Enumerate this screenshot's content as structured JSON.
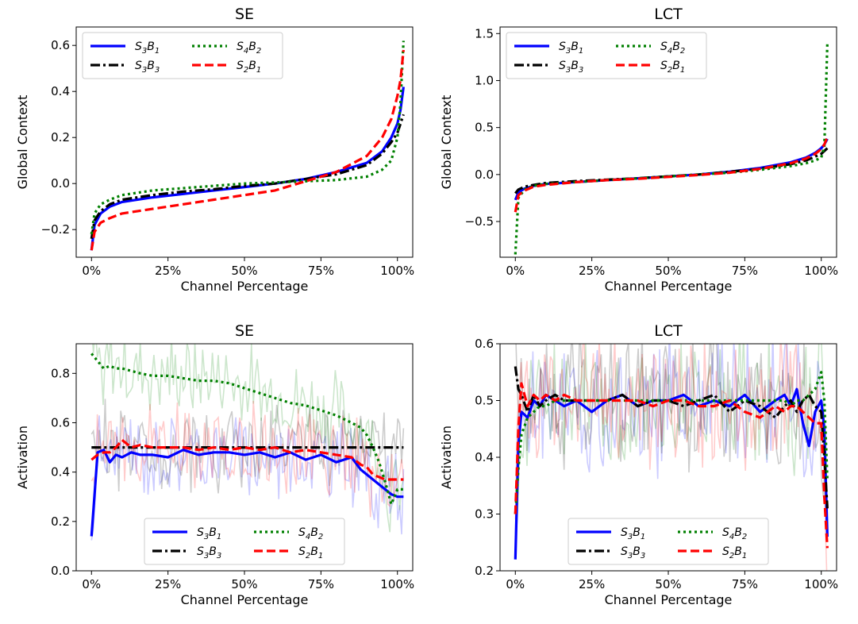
{
  "figure": {
    "legend_labels": {
      "S3B1": {
        "base": "S",
        "sub1": "3",
        "mid": "B",
        "sub2": "1"
      },
      "S3B3": {
        "base": "S",
        "sub1": "3",
        "mid": "B",
        "sub2": "3"
      },
      "S4B2": {
        "base": "S",
        "sub1": "4",
        "mid": "B",
        "sub2": "2"
      },
      "S2B1": {
        "base": "S",
        "sub1": "2",
        "mid": "B",
        "sub2": "1"
      }
    },
    "series_style": {
      "S3B1": {
        "color": "#0000ff",
        "dash": "solid"
      },
      "S3B3": {
        "color": "#000000",
        "dash": "dashdot"
      },
      "S4B2": {
        "color": "#008000",
        "dash": "dotted"
      },
      "S2B1": {
        "color": "#ff0000",
        "dash": "dashed"
      }
    }
  },
  "chart_data": [
    {
      "id": "se_context",
      "type": "line",
      "title": "SE",
      "xlabel": "Channel Percentage",
      "ylabel": "Global Context",
      "xlim": [
        -5,
        105
      ],
      "ylim": [
        -0.32,
        0.68
      ],
      "xticks": [
        0,
        25,
        50,
        75,
        100
      ],
      "xtick_labels": [
        "0%",
        "25%",
        "50%",
        "75%",
        "100%"
      ],
      "yticks": [
        -0.2,
        0.0,
        0.2,
        0.4,
        0.6
      ],
      "ytick_labels": [
        "−0.2",
        "0.0",
        "0.2",
        "0.4",
        "0.6"
      ],
      "legend_location": "upper-left",
      "x": [
        0,
        1,
        3,
        6,
        10,
        20,
        30,
        40,
        50,
        60,
        70,
        80,
        90,
        95,
        98,
        100,
        101,
        102
      ],
      "series": [
        {
          "key": "S3B1",
          "values": [
            -0.29,
            -0.18,
            -0.13,
            -0.1,
            -0.08,
            -0.06,
            -0.045,
            -0.03,
            -0.015,
            0.0,
            0.02,
            0.05,
            0.09,
            0.14,
            0.2,
            0.26,
            0.32,
            0.42
          ]
        },
        {
          "key": "S3B3",
          "values": [
            -0.24,
            -0.16,
            -0.12,
            -0.09,
            -0.07,
            -0.05,
            -0.035,
            -0.025,
            -0.01,
            0.0,
            0.02,
            0.04,
            0.08,
            0.13,
            0.18,
            0.22,
            0.26,
            0.3
          ]
        },
        {
          "key": "S4B2",
          "values": [
            -0.22,
            -0.13,
            -0.09,
            -0.07,
            -0.05,
            -0.03,
            -0.02,
            -0.01,
            0.0,
            0.005,
            0.01,
            0.015,
            0.03,
            0.06,
            0.1,
            0.2,
            0.35,
            0.62
          ]
        },
        {
          "key": "S2B1",
          "values": [
            -0.29,
            -0.21,
            -0.17,
            -0.15,
            -0.13,
            -0.11,
            -0.09,
            -0.07,
            -0.05,
            -0.03,
            0.01,
            0.05,
            0.12,
            0.2,
            0.28,
            0.38,
            0.45,
            0.58
          ]
        }
      ]
    },
    {
      "id": "lct_context",
      "type": "line",
      "title": "LCT",
      "xlabel": "Channel Percentage",
      "ylabel": "Global Context",
      "xlim": [
        -5,
        105
      ],
      "ylim": [
        -0.88,
        1.57
      ],
      "xticks": [
        0,
        25,
        50,
        75,
        100
      ],
      "xtick_labels": [
        "0%",
        "25%",
        "50%",
        "75%",
        "100%"
      ],
      "yticks": [
        -0.5,
        0.0,
        0.5,
        1.0,
        1.5
      ],
      "ytick_labels": [
        "−0.5",
        "0.0",
        "0.5",
        "1.0",
        "1.5"
      ],
      "legend_location": "upper-left",
      "x": [
        0,
        1,
        3,
        6,
        10,
        20,
        30,
        40,
        50,
        60,
        70,
        80,
        90,
        95,
        98,
        100,
        101,
        102
      ],
      "series": [
        {
          "key": "S3B1",
          "values": [
            -0.27,
            -0.19,
            -0.15,
            -0.12,
            -0.1,
            -0.08,
            -0.06,
            -0.04,
            -0.02,
            0.0,
            0.03,
            0.07,
            0.13,
            0.18,
            0.23,
            0.28,
            0.32,
            0.38
          ]
        },
        {
          "key": "S3B3",
          "values": [
            -0.2,
            -0.16,
            -0.13,
            -0.11,
            -0.09,
            -0.07,
            -0.055,
            -0.04,
            -0.02,
            0.0,
            0.03,
            0.06,
            0.11,
            0.15,
            0.19,
            0.22,
            0.25,
            0.28
          ]
        },
        {
          "key": "S4B2",
          "values": [
            -0.85,
            -0.25,
            -0.16,
            -0.12,
            -0.1,
            -0.08,
            -0.06,
            -0.04,
            -0.02,
            0.0,
            0.02,
            0.05,
            0.09,
            0.12,
            0.15,
            0.18,
            0.3,
            1.4
          ]
        },
        {
          "key": "S2B1",
          "values": [
            -0.4,
            -0.22,
            -0.17,
            -0.13,
            -0.11,
            -0.08,
            -0.06,
            -0.045,
            -0.025,
            -0.005,
            0.02,
            0.06,
            0.12,
            0.17,
            0.22,
            0.27,
            0.32,
            0.4
          ]
        }
      ]
    },
    {
      "id": "se_activation",
      "type": "line",
      "title": "SE",
      "xlabel": "Channel Percentage",
      "ylabel": "Activation",
      "xlim": [
        -5,
        105
      ],
      "ylim": [
        0.0,
        0.92
      ],
      "xticks": [
        0,
        25,
        50,
        75,
        100
      ],
      "xtick_labels": [
        "0%",
        "25%",
        "50%",
        "75%",
        "100%"
      ],
      "yticks": [
        0.0,
        0.2,
        0.4,
        0.6,
        0.8
      ],
      "ytick_labels": [
        "0.0",
        "0.2",
        "0.4",
        "0.6",
        "0.8"
      ],
      "legend_location": "lower-center",
      "x": [
        0,
        2,
        4,
        6,
        8,
        10,
        13,
        16,
        20,
        25,
        30,
        35,
        40,
        45,
        50,
        55,
        60,
        65,
        70,
        75,
        80,
        85,
        88,
        90,
        92,
        94,
        96,
        98,
        100,
        102
      ],
      "series": [
        {
          "key": "S3B1",
          "values": [
            0.14,
            0.48,
            0.49,
            0.44,
            0.47,
            0.46,
            0.48,
            0.47,
            0.47,
            0.46,
            0.49,
            0.47,
            0.48,
            0.48,
            0.47,
            0.48,
            0.46,
            0.48,
            0.45,
            0.47,
            0.44,
            0.46,
            0.41,
            0.39,
            0.37,
            0.35,
            0.33,
            0.31,
            0.3,
            0.3
          ]
        },
        {
          "key": "S3B3",
          "values": [
            0.5,
            0.5,
            0.5,
            0.5,
            0.5,
            0.5,
            0.5,
            0.5,
            0.5,
            0.5,
            0.5,
            0.5,
            0.5,
            0.5,
            0.5,
            0.5,
            0.5,
            0.5,
            0.5,
            0.5,
            0.5,
            0.5,
            0.5,
            0.5,
            0.5,
            0.5,
            0.5,
            0.5,
            0.5,
            0.5
          ]
        },
        {
          "key": "S4B2",
          "values": [
            0.88,
            0.85,
            0.82,
            0.83,
            0.82,
            0.82,
            0.81,
            0.8,
            0.79,
            0.79,
            0.78,
            0.77,
            0.77,
            0.76,
            0.74,
            0.72,
            0.7,
            0.68,
            0.67,
            0.65,
            0.63,
            0.6,
            0.58,
            0.55,
            0.5,
            0.44,
            0.36,
            0.27,
            0.33,
            0.33
          ]
        },
        {
          "key": "S2B1",
          "values": [
            0.45,
            0.47,
            0.48,
            0.48,
            0.5,
            0.53,
            0.5,
            0.51,
            0.5,
            0.5,
            0.5,
            0.49,
            0.5,
            0.49,
            0.5,
            0.49,
            0.5,
            0.48,
            0.49,
            0.48,
            0.47,
            0.46,
            0.43,
            0.42,
            0.39,
            0.38,
            0.37,
            0.37,
            0.37,
            0.37
          ]
        }
      ]
    },
    {
      "id": "lct_activation",
      "type": "line",
      "title": "LCT",
      "xlabel": "Channel Percentage",
      "ylabel": "Activation",
      "xlim": [
        -5,
        105
      ],
      "ylim": [
        0.2,
        0.6
      ],
      "xticks": [
        0,
        25,
        50,
        75,
        100
      ],
      "xtick_labels": [
        "0%",
        "25%",
        "50%",
        "75%",
        "100%"
      ],
      "yticks": [
        0.2,
        0.3,
        0.4,
        0.5,
        0.6
      ],
      "ytick_labels": [
        "0.2",
        "0.3",
        "0.4",
        "0.5",
        "0.6"
      ],
      "legend_location": "lower-center",
      "x": [
        0,
        1,
        2,
        4,
        6,
        8,
        10,
        13,
        16,
        20,
        25,
        30,
        35,
        40,
        45,
        50,
        55,
        60,
        65,
        70,
        75,
        80,
        85,
        88,
        90,
        92,
        94,
        96,
        98,
        100,
        101,
        102
      ],
      "series": [
        {
          "key": "S3B1",
          "values": [
            0.22,
            0.42,
            0.48,
            0.47,
            0.5,
            0.49,
            0.51,
            0.5,
            0.49,
            0.5,
            0.48,
            0.5,
            0.51,
            0.49,
            0.5,
            0.5,
            0.51,
            0.49,
            0.5,
            0.49,
            0.51,
            0.48,
            0.5,
            0.51,
            0.49,
            0.52,
            0.46,
            0.42,
            0.48,
            0.5,
            0.45,
            0.26
          ]
        },
        {
          "key": "S3B3",
          "values": [
            0.56,
            0.52,
            0.51,
            0.48,
            0.51,
            0.49,
            0.5,
            0.51,
            0.5,
            0.5,
            0.5,
            0.5,
            0.51,
            0.49,
            0.5,
            0.5,
            0.49,
            0.5,
            0.51,
            0.48,
            0.5,
            0.49,
            0.47,
            0.49,
            0.5,
            0.48,
            0.5,
            0.51,
            0.49,
            0.48,
            0.4,
            0.31
          ]
        },
        {
          "key": "S4B2",
          "values": [
            0.3,
            0.38,
            0.44,
            0.47,
            0.48,
            0.49,
            0.49,
            0.5,
            0.5,
            0.5,
            0.5,
            0.5,
            0.5,
            0.5,
            0.5,
            0.5,
            0.5,
            0.5,
            0.5,
            0.5,
            0.5,
            0.5,
            0.5,
            0.5,
            0.49,
            0.5,
            0.5,
            0.51,
            0.52,
            0.55,
            0.5,
            0.36
          ]
        },
        {
          "key": "S2B1",
          "values": [
            0.3,
            0.45,
            0.53,
            0.49,
            0.51,
            0.5,
            0.51,
            0.5,
            0.51,
            0.5,
            0.5,
            0.5,
            0.5,
            0.5,
            0.49,
            0.5,
            0.5,
            0.49,
            0.49,
            0.5,
            0.48,
            0.47,
            0.49,
            0.48,
            0.49,
            0.49,
            0.48,
            0.47,
            0.46,
            0.46,
            0.33,
            0.24
          ]
        }
      ]
    }
  ]
}
